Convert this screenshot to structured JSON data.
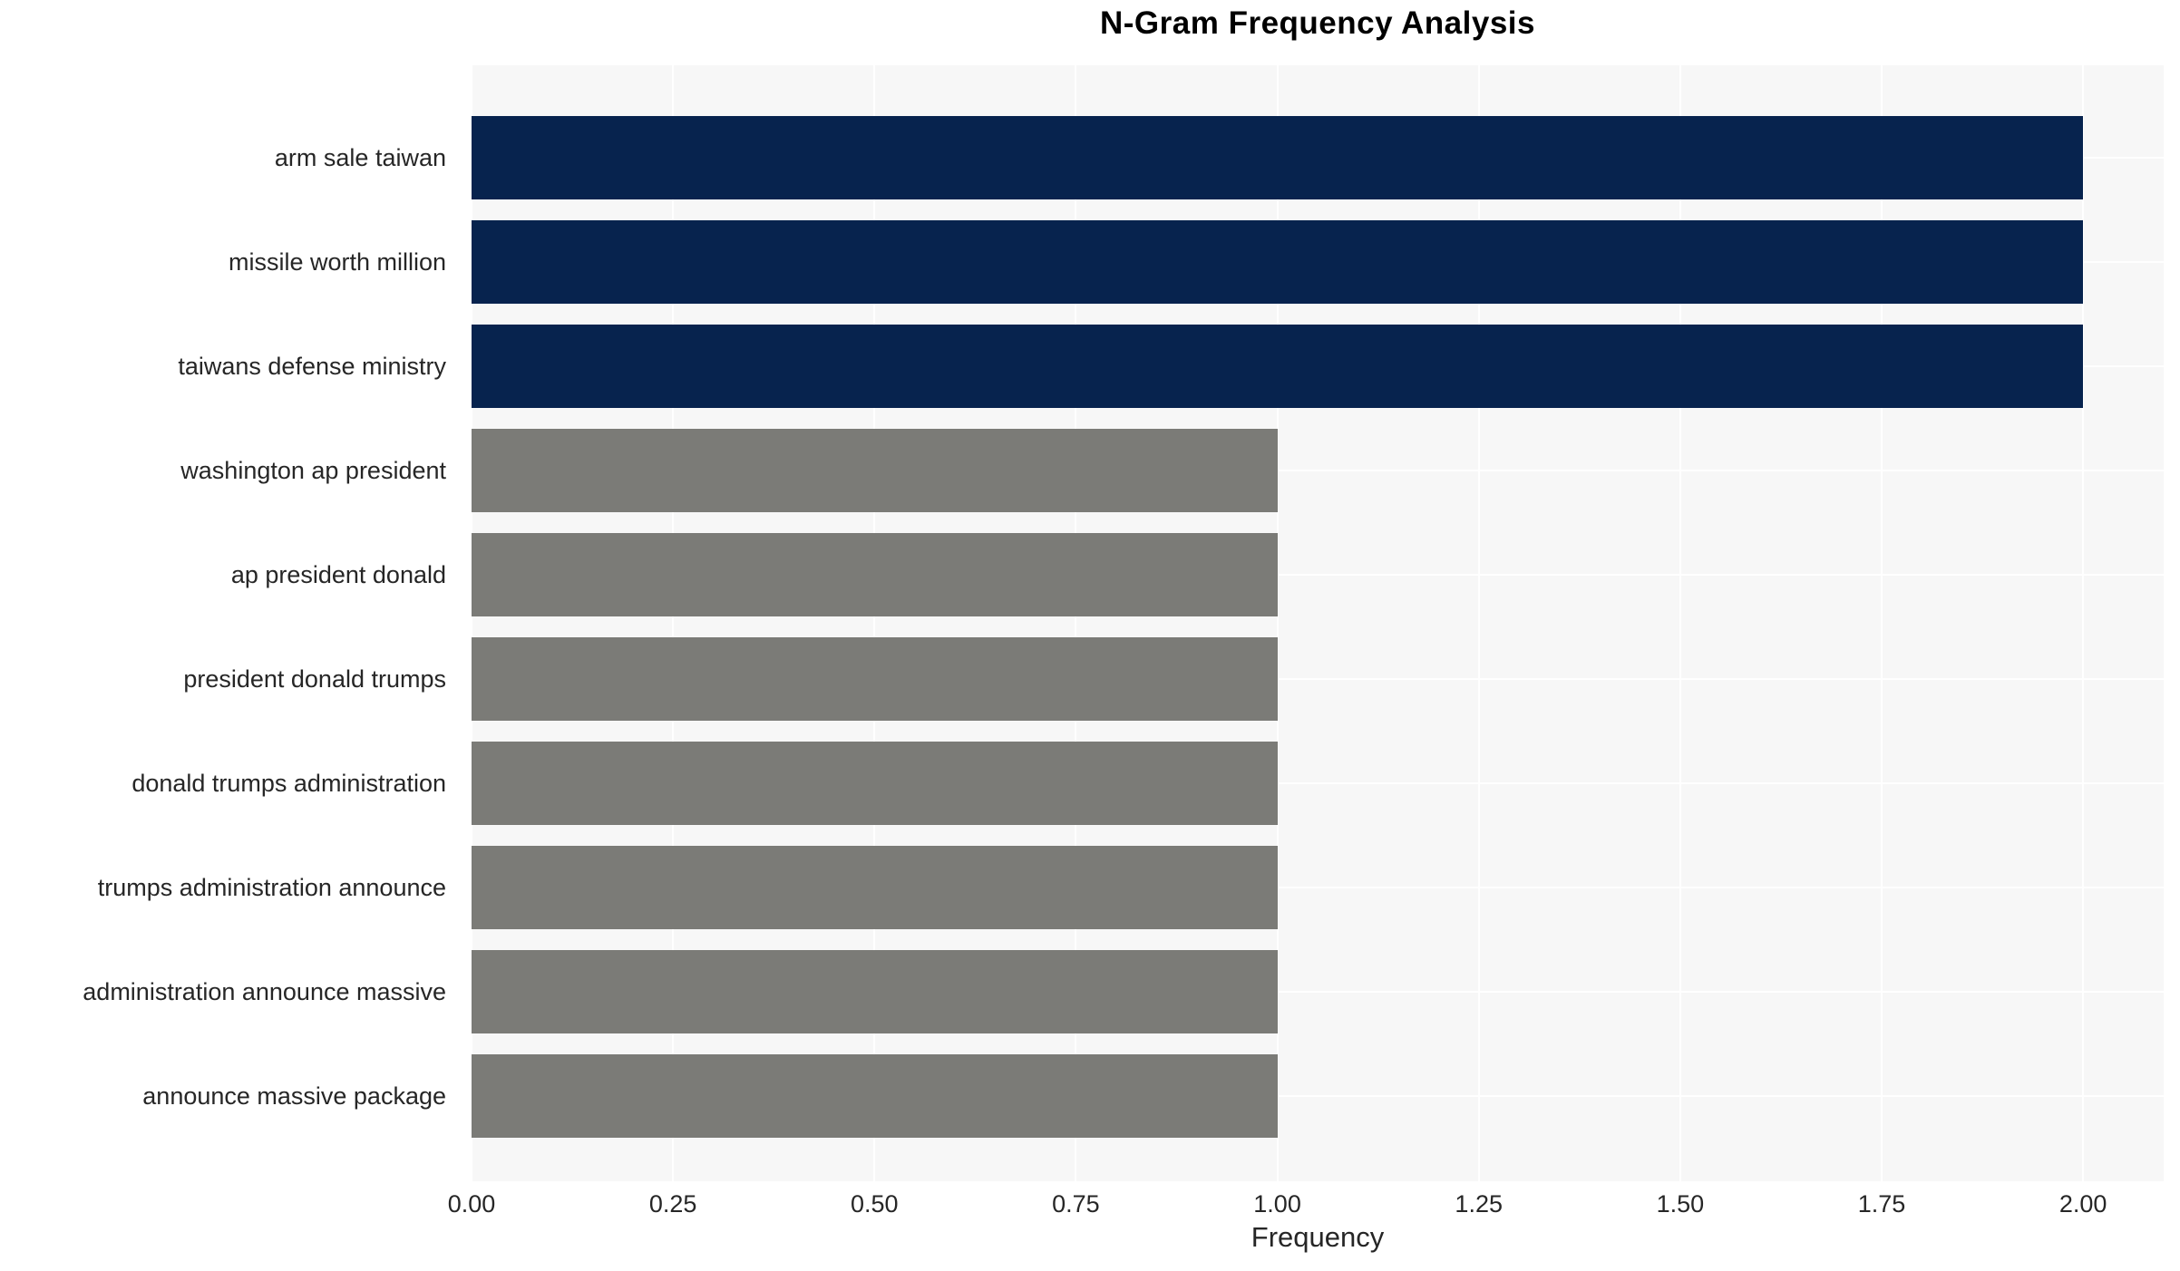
{
  "chart_data": {
    "type": "bar",
    "orientation": "horizontal",
    "title": "N-Gram Frequency Analysis",
    "xlabel": "Frequency",
    "ylabel": "",
    "categories": [
      "arm sale taiwan",
      "missile worth million",
      "taiwans defense ministry",
      "washington ap president",
      "ap president donald",
      "president donald trumps",
      "donald trumps administration",
      "trumps administration announce",
      "administration announce massive",
      "announce massive package"
    ],
    "values": [
      2,
      2,
      2,
      1,
      1,
      1,
      1,
      1,
      1,
      1
    ],
    "bar_colors": [
      "#07234E",
      "#07234E",
      "#07234E",
      "#7B7B77",
      "#7B7B77",
      "#7B7B77",
      "#7B7B77",
      "#7B7B77",
      "#7B7B77",
      "#7B7B77"
    ],
    "xlim": [
      0,
      2.1
    ],
    "xticks": [
      {
        "value": 0.0,
        "label": "0.00"
      },
      {
        "value": 0.25,
        "label": "0.25"
      },
      {
        "value": 0.5,
        "label": "0.50"
      },
      {
        "value": 0.75,
        "label": "0.75"
      },
      {
        "value": 1.0,
        "label": "1.00"
      },
      {
        "value": 1.25,
        "label": "1.25"
      },
      {
        "value": 1.5,
        "label": "1.50"
      },
      {
        "value": 1.75,
        "label": "1.75"
      },
      {
        "value": 2.0,
        "label": "2.00"
      }
    ],
    "grid": true,
    "legend": null,
    "colors": {
      "plot_bg": "#F7F7F7",
      "figure_bg": "#FFFFFF",
      "grid": "#FFFFFF",
      "tick_text": "#262626",
      "title_text": "#000000"
    }
  }
}
